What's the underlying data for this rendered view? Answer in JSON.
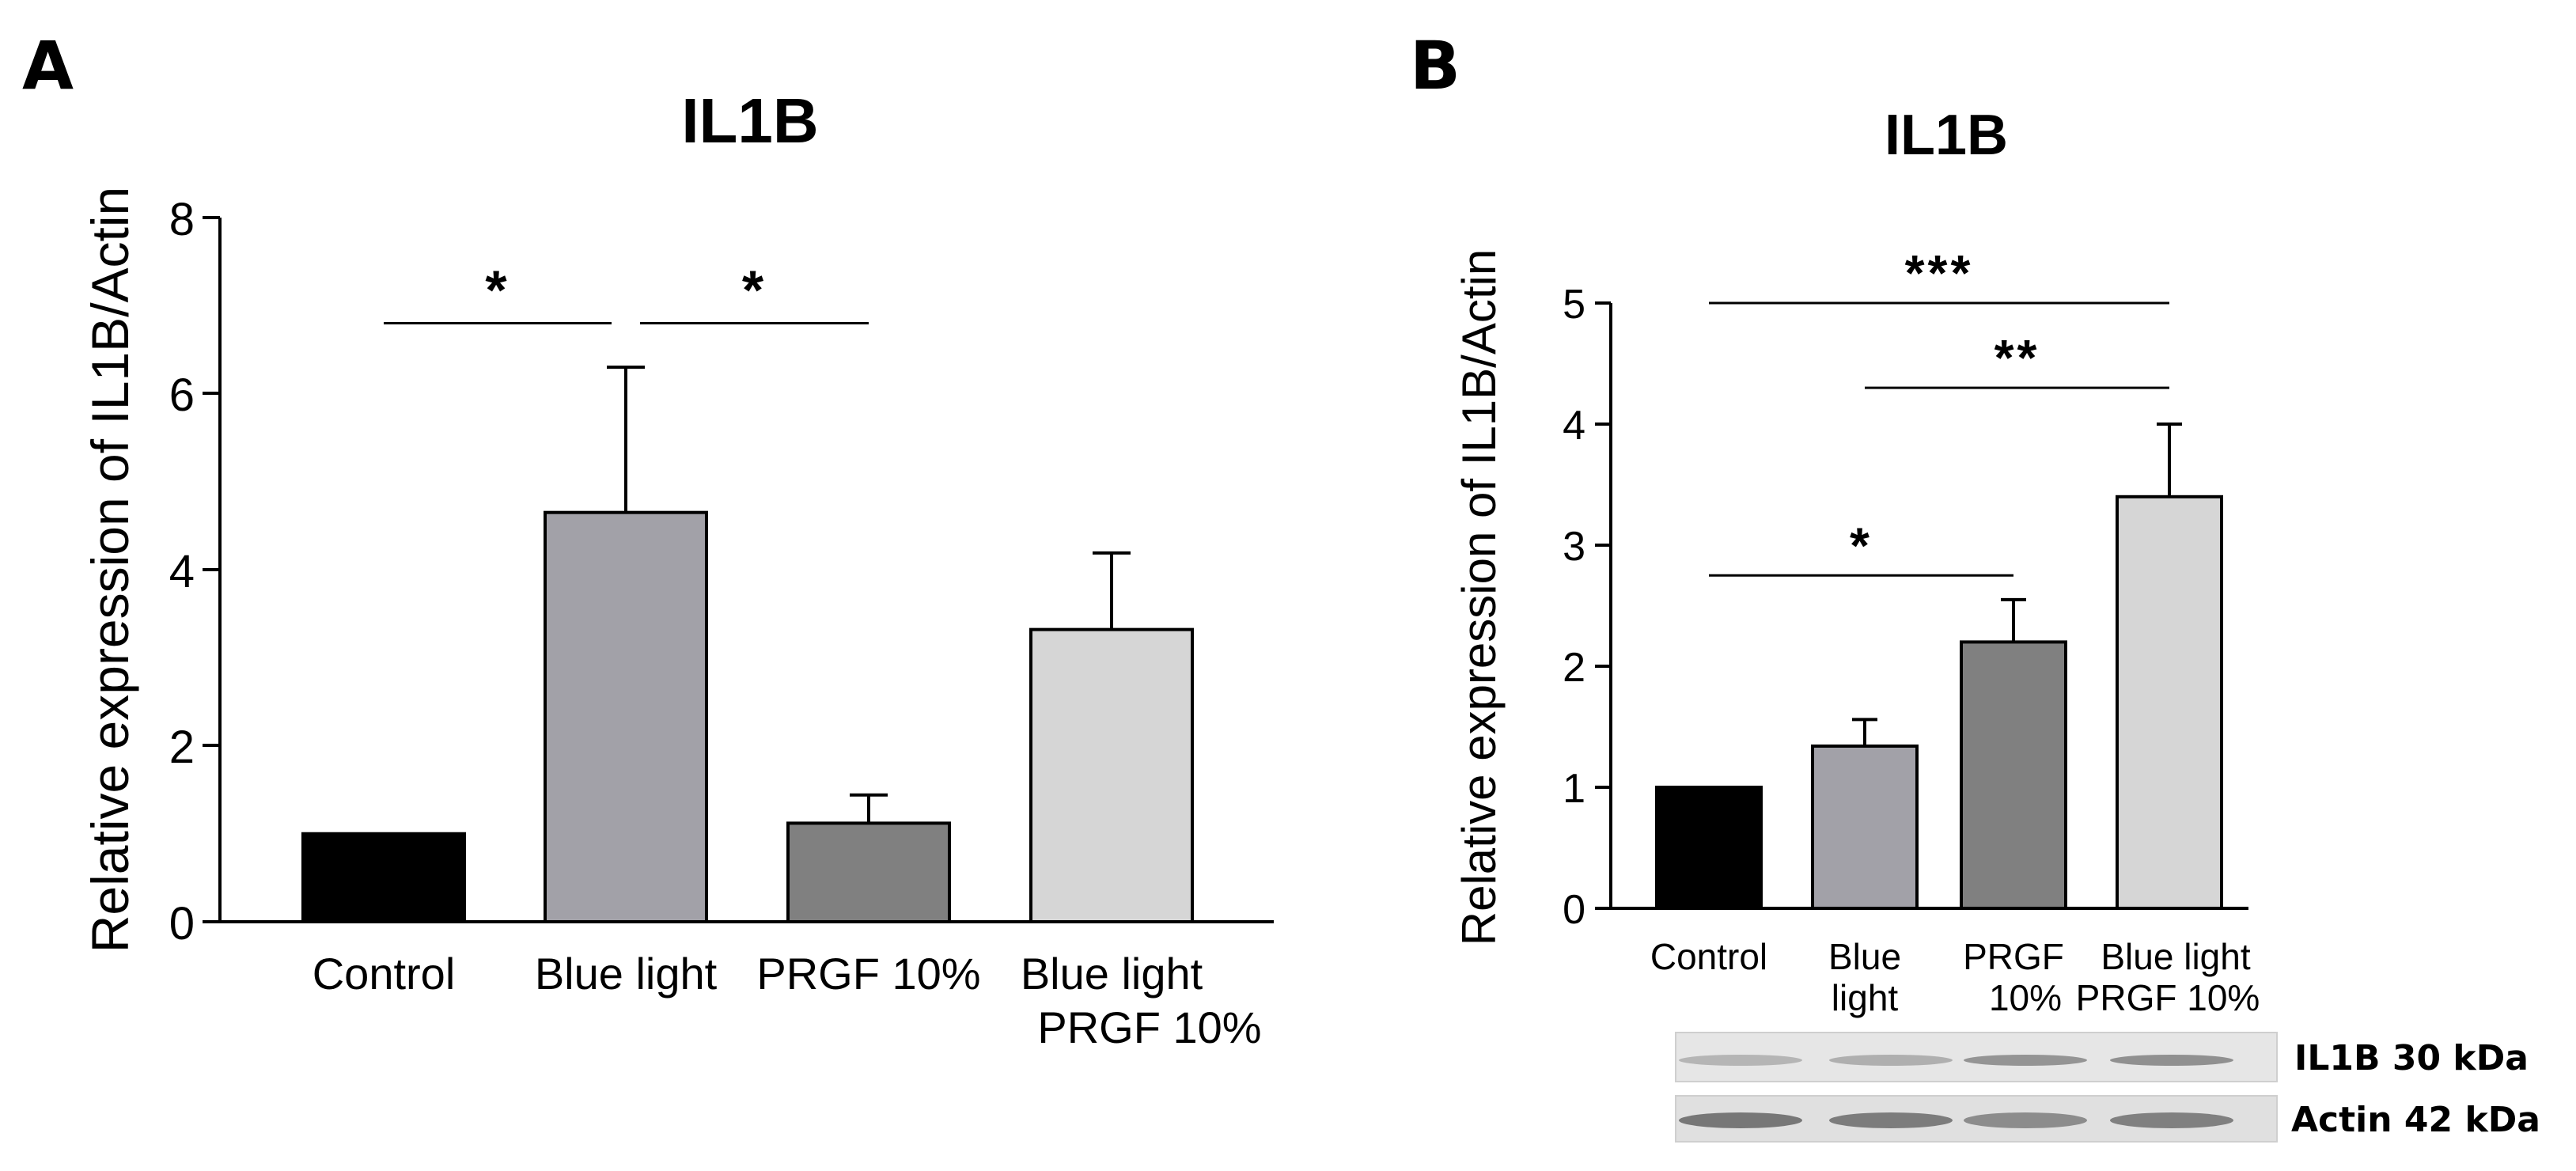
{
  "chart_data": [
    {
      "panel": "A",
      "type": "bar",
      "title": "IL1B",
      "xlabel": "",
      "ylabel": "Relative expression of IL1B/Actin",
      "ylim": [
        0,
        8
      ],
      "yticks": [
        "0",
        "2",
        "4",
        "6",
        "8"
      ],
      "categories": [
        [
          "Control"
        ],
        [
          "Blue light"
        ],
        [
          "PRGF 10%"
        ],
        [
          "Blue light",
          "PRGF 10%"
        ]
      ],
      "values": [
        1.0,
        4.65,
        1.12,
        3.32
      ],
      "errors": [
        0,
        1.65,
        0.32,
        0.87
      ],
      "colors": [
        "#000000",
        "#a2a1a8",
        "#808080",
        "#d6d6d6"
      ],
      "significance": [
        {
          "from": 0,
          "to": 1,
          "label": "*",
          "y": 6.8
        },
        {
          "from": 1,
          "to": 2,
          "label": "*",
          "y": 6.8
        }
      ]
    },
    {
      "panel": "B",
      "type": "bar",
      "title": "IL1B",
      "xlabel": "",
      "ylabel": "Relative expression of IL1B/Actin",
      "ylim": [
        0,
        5
      ],
      "yticks": [
        "0",
        "1",
        "2",
        "3",
        "4",
        "5"
      ],
      "categories": [
        [
          "Control"
        ],
        [
          "Blue",
          "light"
        ],
        [
          "PRGF",
          "10%"
        ],
        [
          "Blue light",
          "PRGF  10%"
        ]
      ],
      "values": [
        1.0,
        1.34,
        2.2,
        3.4
      ],
      "errors": [
        0,
        0.22,
        0.35,
        0.6
      ],
      "colors": [
        "#000000",
        "#a2a1a8",
        "#808080",
        "#d6d6d6"
      ],
      "significance": [
        {
          "from": 0,
          "to": 3,
          "label": "***",
          "y": 5.0
        },
        {
          "from": 1,
          "to": 3,
          "label": "**",
          "y": 4.3
        },
        {
          "from": 0,
          "to": 2,
          "label": "*",
          "y": 2.75
        }
      ],
      "blot": {
        "bands": [
          {
            "label": "IL1B 30 kDa",
            "intensity": [
              0.35,
              0.42,
              0.7,
              0.75
            ]
          },
          {
            "label": "Actin 42 kDa",
            "intensity": [
              1.0,
              0.95,
              0.78,
              0.9
            ]
          }
        ]
      }
    }
  ]
}
